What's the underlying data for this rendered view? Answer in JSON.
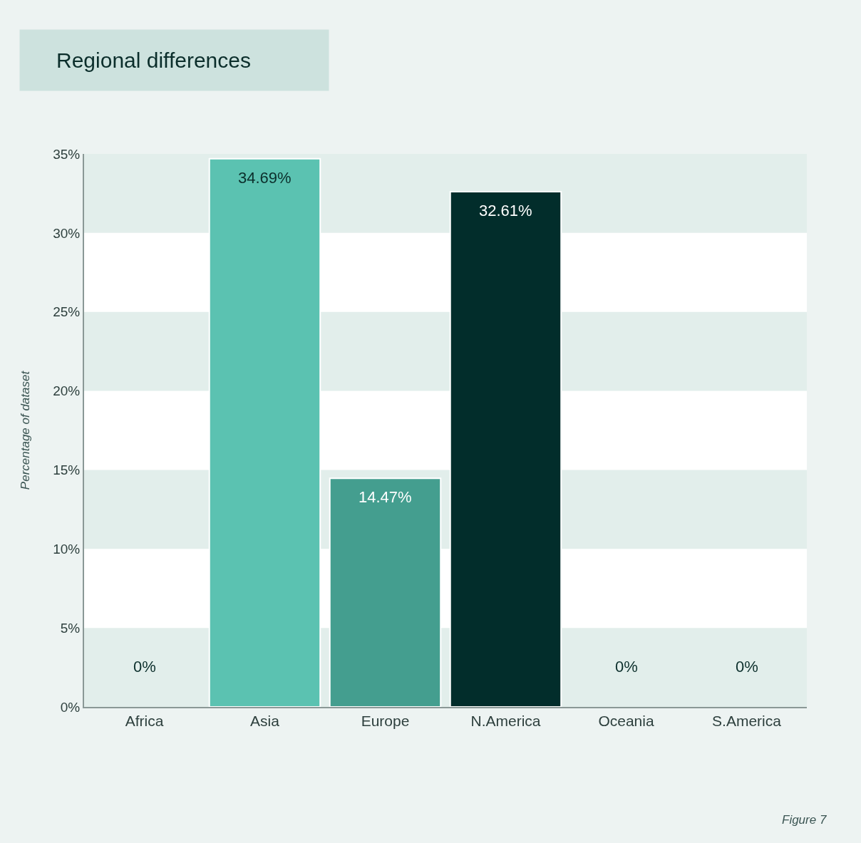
{
  "chart_data": {
    "type": "bar",
    "title": "Regional differences",
    "ylabel": "Percentage of dataset",
    "categories": [
      "Africa",
      "Asia",
      "Europe",
      "N.America",
      "Oceania",
      "S.America"
    ],
    "values": [
      0,
      34.69,
      14.47,
      32.61,
      0,
      0
    ],
    "value_labels": [
      "0%",
      "34.69%",
      "14.47%",
      "32.61%",
      "0%",
      "0%"
    ],
    "colors": [
      "#5bc2b1",
      "#5bc2b1",
      "#449e8f",
      "#022d2b",
      "#5bc2b1",
      "#5bc2b1"
    ],
    "ylim": [
      0,
      35
    ],
    "yticks": [
      {
        "value": 0,
        "label": "0%"
      },
      {
        "value": 5,
        "label": "5%"
      },
      {
        "value": 10,
        "label": "10%"
      },
      {
        "value": 15,
        "label": "15%"
      },
      {
        "value": 20,
        "label": "20%"
      },
      {
        "value": 25,
        "label": "25%"
      },
      {
        "value": 30,
        "label": "30%"
      },
      {
        "value": 35,
        "label": "35%"
      }
    ],
    "bands": [
      {
        "axis": "y",
        "from": 0,
        "to": 5,
        "color": "#e2eeeb"
      },
      {
        "axis": "y",
        "from": 10,
        "to": 15,
        "color": "#e2eeeb"
      },
      {
        "axis": "y",
        "from": 20,
        "to": 25,
        "color": "#e2eeeb"
      },
      {
        "axis": "y",
        "from": 30,
        "to": 35,
        "color": "#e2eeeb"
      }
    ],
    "grid": false,
    "annotations": [
      "Figure 7"
    ]
  }
}
